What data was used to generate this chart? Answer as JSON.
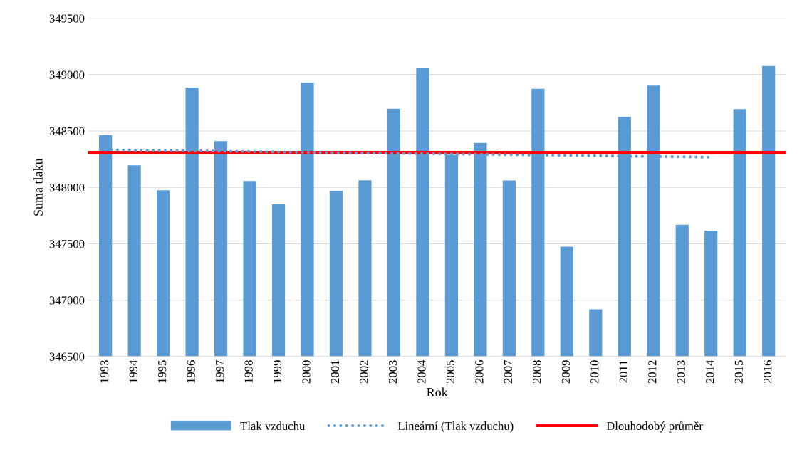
{
  "chart_data": {
    "type": "bar",
    "xlabel": "Rok",
    "ylabel": "Suma tlaku",
    "categories": [
      "1993",
      "1994",
      "1995",
      "1996",
      "1997",
      "1998",
      "1999",
      "2000",
      "2001",
      "2002",
      "2003",
      "2004",
      "2005",
      "2006",
      "2007",
      "2008",
      "2009",
      "2010",
      "2011",
      "2012",
      "2013",
      "2014",
      "2015",
      "2016"
    ],
    "series": [
      {
        "name": "Tlak vzduchu",
        "color": "#5b9bd5",
        "values": [
          348464,
          348195,
          347975,
          348886,
          348410,
          348056,
          347852,
          348928,
          347969,
          348063,
          348698,
          349056,
          348289,
          348394,
          348062,
          348875,
          347474,
          346919,
          348625,
          348903,
          347669,
          347616,
          348694,
          349076
        ]
      },
      {
        "name": "Lineární (Tlak vzduchu)",
        "type": "line",
        "color": "#5b9bd5",
        "line_style": "dotted",
        "values": [
          348333,
          348330,
          348327,
          348324,
          348321,
          348318,
          348314,
          348311,
          348308,
          348305,
          348302,
          348299,
          348296,
          348293,
          348290,
          348287,
          348284,
          348281,
          348277,
          348274,
          348271,
          348268,
          null,
          null
        ]
      }
    ],
    "ref_lines": [
      {
        "axis": "y",
        "value": 348310,
        "label": "Dlouhodobý průměr",
        "color": "#ff0000",
        "line_style": "solid"
      }
    ],
    "ylim": [
      346500,
      349500
    ],
    "yticks": [
      346500,
      347000,
      347500,
      348000,
      348500,
      349000,
      349500
    ],
    "grid": "y",
    "legend": "bottom"
  }
}
